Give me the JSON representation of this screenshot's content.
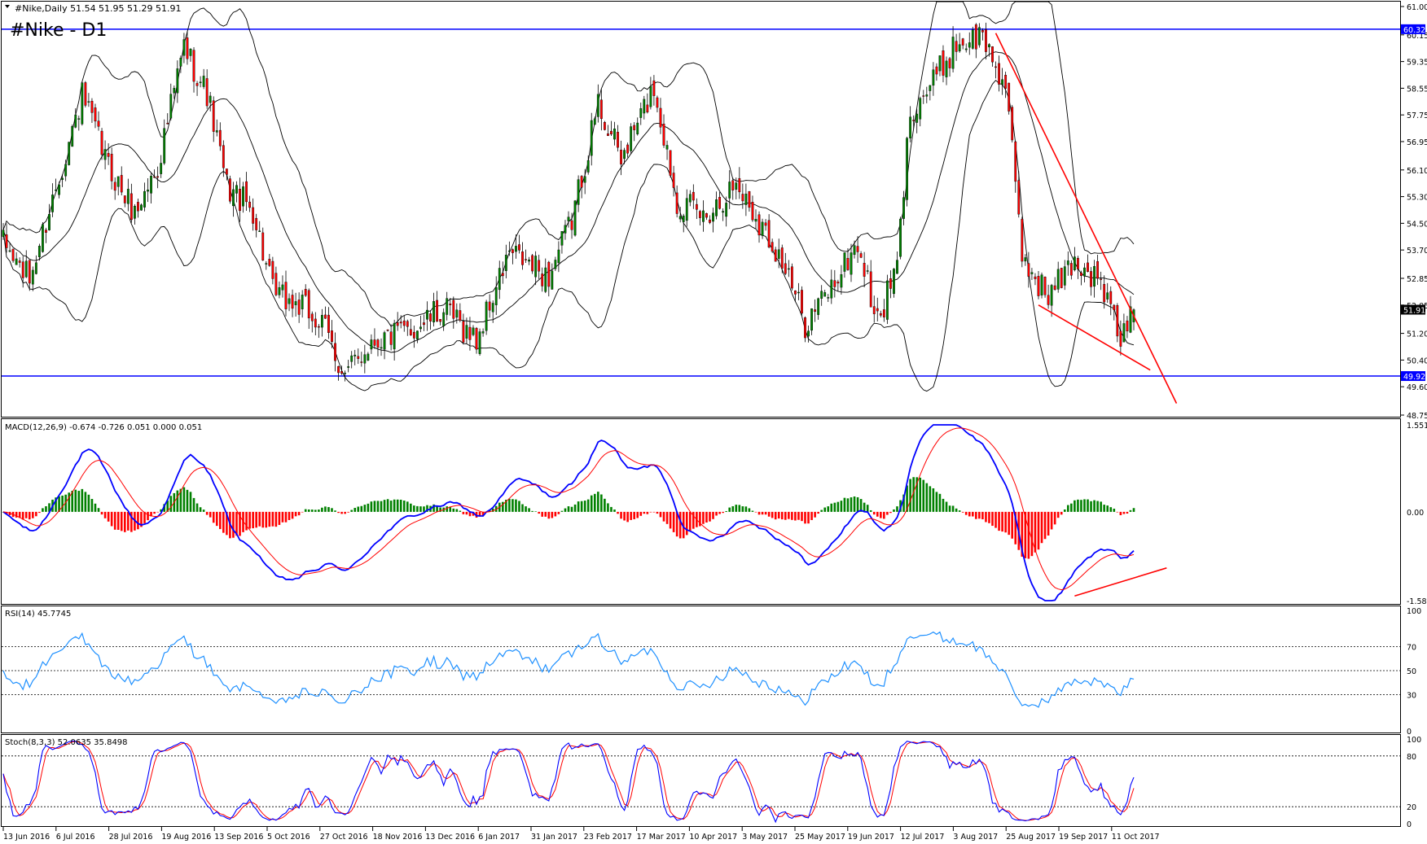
{
  "header": {
    "symbol_info": "#Nike,Daily  51.54 51.95 51.29 51.91",
    "watermark": "#Nike - D1"
  },
  "colors": {
    "bull": "#008000",
    "bear": "#ff0000",
    "level": "#0000ff",
    "trend": "#ff0000",
    "band": "#000000",
    "macd_line": "#0000ff",
    "signal_line": "#ff0000",
    "rsi_line": "#1e90ff",
    "stoch_main": "#0000ff",
    "stoch_signal": "#ff0000"
  },
  "x_axis": {
    "labels": [
      "13 Jun 2016",
      "6 Jul 2016",
      "28 Jul 2016",
      "19 Aug 2016",
      "13 Sep 2016",
      "5 Oct 2016",
      "27 Oct 2016",
      "18 Nov 2016",
      "13 Dec 2016",
      "6 Jan 2017",
      "31 Jan 2017",
      "23 Feb 2017",
      "17 Mar 2017",
      "10 Apr 2017",
      "3 May 2017",
      "25 May 2017",
      "19 Jun 2017",
      "12 Jul 2017",
      "3 Aug 2017",
      "25 Aug 2017",
      "19 Sep 2017",
      "11 Oct 2017"
    ]
  },
  "main_pane": {
    "y_ticks": [
      "61.00",
      "60.15",
      "59.35",
      "58.55",
      "57.75",
      "56.95",
      "56.10",
      "55.30",
      "54.50",
      "53.70",
      "52.85",
      "52.05",
      "51.20",
      "50.40",
      "49.60",
      "48.75"
    ],
    "price_range": [
      48.75,
      61.0
    ],
    "levels": [
      {
        "value": 60.32,
        "label": "60.32"
      },
      {
        "value": 49.92,
        "label": "49.92"
      }
    ],
    "current_price": {
      "value": 51.91,
      "label": "51.91"
    }
  },
  "macd_pane": {
    "label": "MACD(12,26,9) -0.674 -0.726 0.051 0.000 0.051",
    "y_ticks": [
      "1.551",
      "0.00",
      "-1.583"
    ],
    "range": [
      -1.583,
      1.551
    ]
  },
  "rsi_pane": {
    "label": "RSI(14) 45.7745",
    "y_ticks": [
      "100",
      "70",
      "50",
      "30",
      "0"
    ],
    "levels": [
      70,
      50,
      30
    ]
  },
  "stoch_pane": {
    "label": "Stoch(8,3,3) 52.0635 35.8498",
    "y_ticks": [
      "100",
      "80",
      "20",
      "0"
    ],
    "levels": [
      80,
      20
    ]
  },
  "chart_data": {
    "type": "candlestick",
    "title": "#Nike - D1",
    "bars": 345,
    "start_date": "13 Jun 2016",
    "end_date": "13 Oct 2017",
    "last_bar": {
      "open": 51.54,
      "high": 51.95,
      "low": 51.29,
      "close": 51.91
    },
    "close_path": [
      {
        "bar": 0,
        "price": 53.9
      },
      {
        "bar": 8,
        "price": 52.8
      },
      {
        "bar": 14,
        "price": 54.9
      },
      {
        "bar": 24,
        "price": 58.3
      },
      {
        "bar": 32,
        "price": 56.2
      },
      {
        "bar": 40,
        "price": 54.8
      },
      {
        "bar": 47,
        "price": 56.2
      },
      {
        "bar": 55,
        "price": 59.8
      },
      {
        "bar": 62,
        "price": 58.4
      },
      {
        "bar": 68,
        "price": 55.6
      },
      {
        "bar": 76,
        "price": 54.9
      },
      {
        "bar": 82,
        "price": 52.4
      },
      {
        "bar": 92,
        "price": 51.9
      },
      {
        "bar": 98,
        "price": 51.3
      },
      {
        "bar": 104,
        "price": 49.9
      },
      {
        "bar": 112,
        "price": 51.0
      },
      {
        "bar": 122,
        "price": 51.2
      },
      {
        "bar": 134,
        "price": 51.9
      },
      {
        "bar": 144,
        "price": 51.0
      },
      {
        "bar": 154,
        "price": 53.6
      },
      {
        "bar": 166,
        "price": 52.9
      },
      {
        "bar": 173,
        "price": 54.6
      },
      {
        "bar": 181,
        "price": 58.1
      },
      {
        "bar": 188,
        "price": 56.4
      },
      {
        "bar": 198,
        "price": 58.6
      },
      {
        "bar": 205,
        "price": 55.2
      },
      {
        "bar": 213,
        "price": 54.7
      },
      {
        "bar": 223,
        "price": 55.7
      },
      {
        "bar": 236,
        "price": 53.6
      },
      {
        "bar": 244,
        "price": 51.5
      },
      {
        "bar": 252,
        "price": 52.6
      },
      {
        "bar": 260,
        "price": 53.9
      },
      {
        "bar": 266,
        "price": 51.5
      },
      {
        "bar": 272,
        "price": 53.2
      },
      {
        "bar": 276,
        "price": 57.9
      },
      {
        "bar": 282,
        "price": 58.6
      },
      {
        "bar": 290,
        "price": 59.9
      },
      {
        "bar": 298,
        "price": 60.1
      },
      {
        "bar": 305,
        "price": 58.6
      },
      {
        "bar": 310,
        "price": 53.5
      },
      {
        "bar": 318,
        "price": 52.3
      },
      {
        "bar": 326,
        "price": 53.4
      },
      {
        "bar": 334,
        "price": 52.7
      },
      {
        "bar": 340,
        "price": 51.0
      },
      {
        "bar": 344,
        "price": 51.91
      }
    ],
    "trendlines": [
      {
        "name": "Descending resistance",
        "from": {
          "bar": 302,
          "price": 60.2
        },
        "to": {
          "bar": 357,
          "price": 49.1
        }
      },
      {
        "name": "Price support line",
        "from": {
          "bar": 315,
          "price": 52.05
        },
        "to": {
          "bar": 349,
          "price": 50.1
        }
      },
      {
        "name": "MACD support line",
        "from": {
          "bar": 326,
          "macd": -1.5
        },
        "to": {
          "bar": 354,
          "macd": -1.0
        }
      }
    ]
  }
}
